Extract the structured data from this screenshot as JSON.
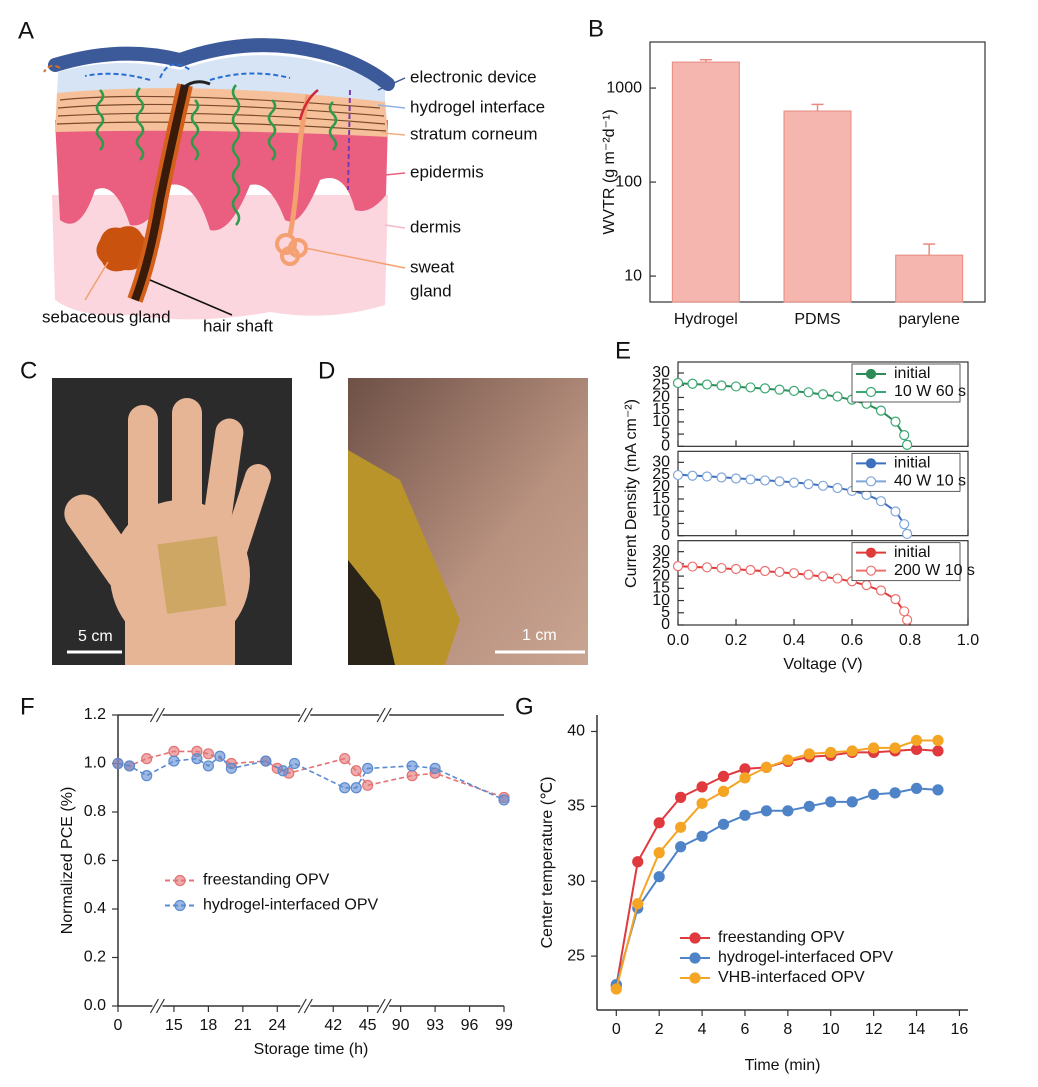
{
  "diagram": {
    "panel": "A",
    "labels": {
      "electronic_device": "electronic device",
      "hydrogel_interface": "hydrogel interface",
      "stratum_corneum": "stratum corneum",
      "epidermis": "epidermis",
      "dermis": "dermis",
      "sweat_gland": [
        "sweat",
        "gland"
      ],
      "sebaceous_gland": "sebaceous gland",
      "hair_shaft": "hair shaft"
    }
  },
  "photos": [
    {
      "panel": "C",
      "scale_bar": "5 cm"
    },
    {
      "panel": "D",
      "scale_bar": "1 cm"
    }
  ],
  "chart_data": [
    {
      "panel": "B",
      "type": "bar",
      "ylabel": "WVTR (g m⁻²d⁻¹)",
      "categories": [
        "Hydrogel",
        "PDMS",
        "parylene"
      ],
      "values": [
        1890,
        570,
        16.7
      ],
      "errors": [
        110,
        100,
        5.2
      ],
      "color": "#f4b6ae",
      "edge_color": "#e88a80",
      "log_y": true,
      "ylim": [
        5.3,
        3090
      ],
      "yticks": [
        10,
        100,
        1000
      ]
    },
    {
      "panel": "E",
      "type": "line",
      "xlabel": "Voltage (V)",
      "ylabel": "Current Density (mA cm⁻²)",
      "x": [
        0,
        0.05,
        0.1,
        0.15,
        0.2,
        0.25,
        0.3,
        0.35,
        0.4,
        0.45,
        0.5,
        0.55,
        0.6,
        0.65,
        0.7,
        0.75,
        0.78,
        0.79
      ],
      "xlim": [
        0,
        1
      ],
      "xticks": [
        {
          "value": 0,
          "label": "0.0"
        },
        0.2,
        0.4,
        0.6,
        0.8,
        {
          "value": 1,
          "label": "1.0"
        }
      ],
      "legend": "upper right",
      "subplots": [
        {
          "ylim": [
            0,
            34.5
          ],
          "yticks": [
            0,
            5,
            10,
            15,
            20,
            25,
            30
          ],
          "series": [
            {
              "name": "initial",
              "color": "#2e8b57",
              "marker": "filled",
              "line": true,
              "values": [
                25.8,
                25.5,
                25.2,
                24.8,
                24.4,
                24.0,
                23.6,
                23.1,
                22.6,
                22.0,
                21.2,
                20.3,
                19.0,
                17.3,
                14.5,
                10.0,
                4.5,
                0.5
              ]
            },
            {
              "name": "10 W 60 s",
              "color": "#3aa872",
              "marker": "open",
              "line": false,
              "values": [
                25.9,
                25.6,
                25.3,
                24.9,
                24.5,
                24.1,
                23.7,
                23.2,
                22.7,
                22.1,
                21.3,
                20.4,
                19.1,
                17.4,
                14.6,
                10.1,
                4.6,
                0.6
              ]
            }
          ]
        },
        {
          "ylim": [
            0,
            34.5
          ],
          "yticks": [
            0,
            5,
            10,
            15,
            20,
            25,
            30
          ],
          "series": [
            {
              "name": "initial",
              "color": "#3f6fbf",
              "marker": "filled",
              "line": true,
              "values": [
                24.9,
                24.6,
                24.3,
                23.9,
                23.5,
                23.1,
                22.7,
                22.3,
                21.8,
                21.2,
                20.5,
                19.6,
                18.4,
                16.8,
                14.2,
                10.0,
                4.8,
                0.8
              ]
            },
            {
              "name": "40 W 10 s",
              "color": "#7fa6d8",
              "marker": "open",
              "line": false,
              "values": [
                24.8,
                24.5,
                24.2,
                23.8,
                23.4,
                23.0,
                22.6,
                22.2,
                21.7,
                21.1,
                20.4,
                19.5,
                18.3,
                16.7,
                14.1,
                9.9,
                4.7,
                0.7
              ]
            }
          ]
        },
        {
          "ylim": [
            0,
            34.5
          ],
          "yticks": [
            0,
            5,
            10,
            15,
            20,
            25,
            30
          ],
          "series": [
            {
              "name": "initial",
              "color": "#e03a3a",
              "marker": "filled",
              "line": true,
              "values": [
                24.0,
                23.8,
                23.5,
                23.2,
                22.8,
                22.4,
                22.0,
                21.6,
                21.1,
                20.5,
                19.8,
                18.9,
                17.8,
                16.2,
                14.0,
                10.5,
                5.5,
                2.0
              ]
            },
            {
              "name": "200 W 10 s",
              "color": "#ee6f6f",
              "marker": "open",
              "line": false,
              "values": [
                24.1,
                23.9,
                23.6,
                23.3,
                22.9,
                22.5,
                22.1,
                21.7,
                21.2,
                20.6,
                19.9,
                19.0,
                17.9,
                16.3,
                14.1,
                10.6,
                5.6,
                2.1
              ]
            }
          ]
        }
      ]
    },
    {
      "panel": "F",
      "type": "line",
      "xlabel": "Storage time (h)",
      "ylabel": "Normalized PCE (%)",
      "xlim": [
        0,
        99
      ],
      "x_breaks": [
        [
          3,
          14
        ],
        [
          26,
          40
        ],
        [
          46,
          89
        ]
      ],
      "xticks": [
        0,
        15,
        18,
        21,
        24,
        42,
        45,
        90,
        93,
        96,
        99
      ],
      "ylim": [
        0,
        1.2
      ],
      "yticks": [
        {
          "value": 0,
          "label": "0.0"
        },
        0.2,
        0.4,
        0.6,
        0.8,
        {
          "value": 1,
          "label": "1.0"
        },
        1.2
      ],
      "legend": "center left",
      "series": [
        {
          "name": "freestanding OPV",
          "color": "#e57373",
          "dash": true,
          "x": [
            0,
            1,
            2.5,
            15,
            17,
            18,
            20,
            23,
            24,
            25,
            43,
            44,
            45,
            91,
            93,
            99
          ],
          "values": [
            1.0,
            0.99,
            1.02,
            1.05,
            1.05,
            1.04,
            1.0,
            1.01,
            0.98,
            0.96,
            1.02,
            0.97,
            0.91,
            0.95,
            0.96,
            0.86
          ]
        },
        {
          "name": "hydrogel-interfaced OPV",
          "color": "#5b8bd0",
          "dash": true,
          "x": [
            0,
            1,
            2.5,
            15,
            17,
            18,
            19,
            20,
            23,
            24.5,
            25.5,
            43,
            44,
            45,
            91,
            93,
            99
          ],
          "values": [
            1.0,
            0.99,
            0.95,
            1.01,
            1.02,
            0.99,
            1.03,
            0.98,
            1.01,
            0.97,
            1.0,
            0.9,
            0.9,
            0.98,
            0.99,
            0.98,
            0.85
          ]
        }
      ]
    },
    {
      "panel": "G",
      "type": "line",
      "xlabel": "Time (min)",
      "ylabel": "Center temperature (℃)",
      "x": [
        0,
        1,
        2,
        3,
        4,
        5,
        6,
        7,
        8,
        9,
        10,
        11,
        12,
        13,
        14,
        15
      ],
      "xlim": [
        -0.9,
        16.4
      ],
      "xticks": [
        0,
        2,
        4,
        6,
        8,
        10,
        12,
        14,
        16
      ],
      "ylim": [
        21.4,
        41.1
      ],
      "yticks": [
        25,
        30,
        35,
        40
      ],
      "legend": "lower left",
      "series": [
        {
          "name": "freestanding OPV",
          "color": "#e0393e",
          "values": [
            23.0,
            31.3,
            33.9,
            35.6,
            36.3,
            37.0,
            37.5,
            37.6,
            38.0,
            38.3,
            38.4,
            38.6,
            38.6,
            38.7,
            38.8,
            38.7
          ]
        },
        {
          "name": "hydrogel-interfaced OPV",
          "color": "#4f83c8",
          "values": [
            23.1,
            28.2,
            30.3,
            32.3,
            33.0,
            33.8,
            34.4,
            34.7,
            34.7,
            35.0,
            35.3,
            35.3,
            35.8,
            35.9,
            36.2,
            36.1
          ]
        },
        {
          "name": "VHB-interfaced OPV",
          "color": "#f5a524",
          "values": [
            22.8,
            28.5,
            31.9,
            33.6,
            35.2,
            36.0,
            36.9,
            37.6,
            38.1,
            38.5,
            38.6,
            38.7,
            38.9,
            38.9,
            39.4,
            39.4
          ]
        }
      ]
    }
  ]
}
